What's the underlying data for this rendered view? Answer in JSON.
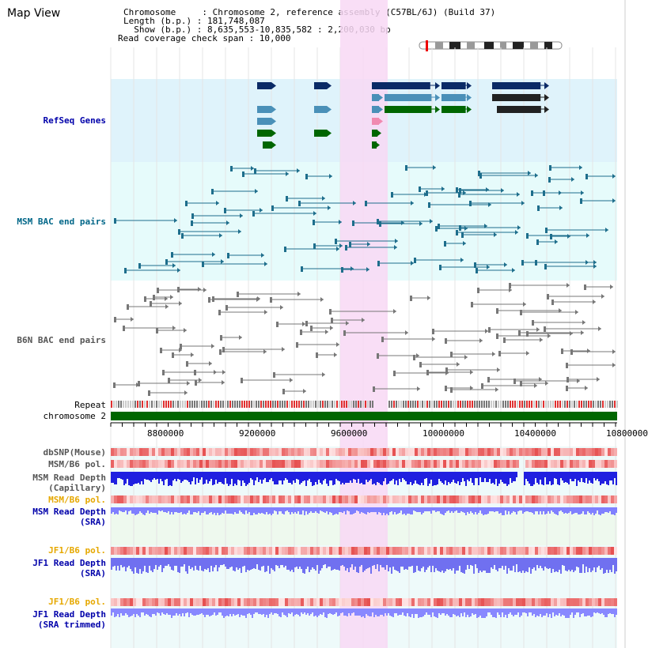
{
  "page_title": "Map View",
  "info": {
    "chromosome": "Chromosome     : Chromosome 2, reference assembly (C57BL/6J) (Build 37)",
    "length": "Length (b.p.) : 181,748,087",
    "show": "  Show (b.p.) : 8,635,553-10,835,582 : 2,200,030 bp",
    "coverage": "Read coverage check span : 10,000"
  },
  "tracks": {
    "refseq": "RefSeq Genes",
    "msm_bac": "MSM BAC end pairs",
    "b6n_bac": "B6N BAC end pairs",
    "repeat": "Repeat",
    "chromosome": "chromosome 2",
    "dbsnp": "dbSNP(Mouse)",
    "msm_b6_pol": "MSM/B6 pol.",
    "msm_depth_cap_1": "MSM Read Depth",
    "msm_depth_cap_2": "(Capillary)",
    "msm_b6_pol_sra": "MSM/B6 pol.",
    "msm_depth_sra_1": "MSM Read Depth",
    "msm_depth_sra_2": "(SRA)",
    "jf1_pol_1": "JF1/B6 pol.",
    "jf1_depth_1": "JF1 Read Depth",
    "jf1_depth_1b": "(SRA)",
    "jf1_pol_2": "JF1/B6 pol.",
    "jf1_depth_2": "JF1 Read Depth",
    "jf1_depth_2b": "(SRA trimmed)"
  },
  "axis_ticks": [
    "8800000",
    "9200000",
    "9600000",
    "10000000",
    "10400000",
    "10800000"
  ],
  "colors": {
    "refseq_bg": "#dff3fb",
    "msm_bg": "#e6fbfb",
    "highlight": "#f8d8f4",
    "chrom_green": "#006600",
    "label_blue": "#0000aa",
    "label_teal": "#006688",
    "label_gray": "#555555",
    "label_orange": "#e6a800"
  }
}
